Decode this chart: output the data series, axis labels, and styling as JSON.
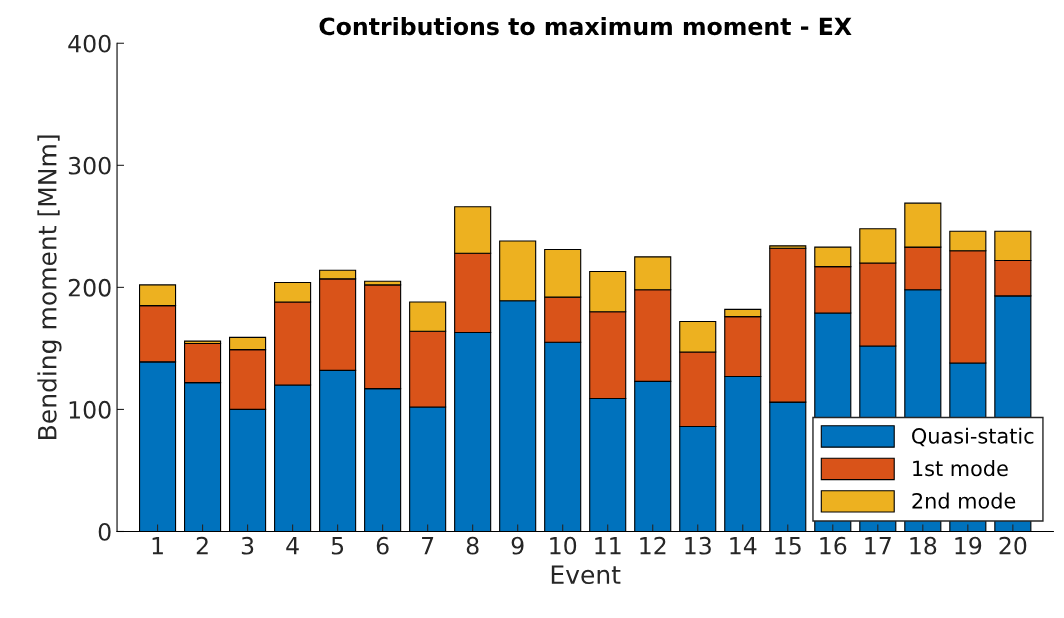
{
  "chart_data": {
    "type": "bar",
    "title": "Contributions to maximum moment - EX",
    "xlabel": "Event",
    "ylabel": "Bending moment [MNm]",
    "categories": [
      "1",
      "2",
      "3",
      "4",
      "5",
      "6",
      "7",
      "8",
      "9",
      "10",
      "11",
      "12",
      "13",
      "14",
      "15",
      "16",
      "17",
      "18",
      "19",
      "20"
    ],
    "stacked": true,
    "series": [
      {
        "name": "Quasi-static",
        "color": "#0072bd",
        "values": [
          139,
          122,
          100,
          120,
          132,
          117,
          102,
          163,
          189,
          155,
          109,
          123,
          86,
          127,
          106,
          179,
          152,
          198,
          138,
          193
        ]
      },
      {
        "name": "1st mode",
        "color": "#d95319",
        "values": [
          46,
          32,
          49,
          68,
          75,
          85,
          62,
          65,
          null,
          37,
          71,
          75,
          61,
          49,
          126,
          38,
          68,
          35,
          92,
          29
        ]
      },
      {
        "name": "2nd mode",
        "color": "#edb120",
        "values": [
          17,
          2,
          10,
          16,
          7,
          3,
          24,
          38,
          49,
          39,
          33,
          27,
          25,
          6,
          2,
          16,
          28,
          36,
          16,
          24
        ]
      }
    ],
    "ylim": [
      0,
      400
    ],
    "yticks": [
      0,
      100,
      200,
      300,
      400
    ],
    "grid": false,
    "legend": "bottom right"
  }
}
